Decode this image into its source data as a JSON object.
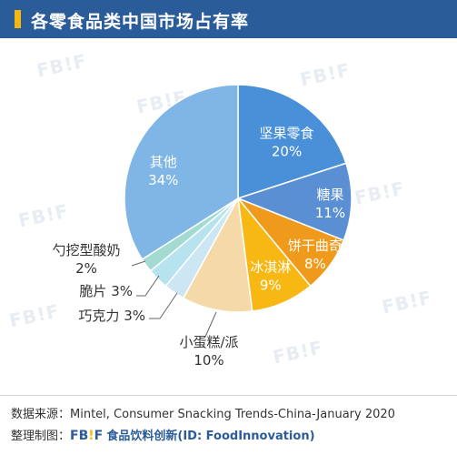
{
  "header": {
    "title": "各零食品类中国市场占有率"
  },
  "watermark": "FB!F",
  "chart_data": {
    "type": "pie",
    "title": "各零食品类中国市场占有率",
    "slices": [
      {
        "name": "坚果零食",
        "value_label": "20%",
        "value": 20,
        "color": "#4a90d9",
        "label_color": "#ffffff"
      },
      {
        "name": "糖果",
        "value_label": "11%",
        "value": 11,
        "color": "#5b8fd3",
        "label_color": "#ffffff"
      },
      {
        "name": "饼干曲奇",
        "value_label": "8%",
        "value": 8,
        "color": "#f09a1c",
        "label_color": "#ffffff"
      },
      {
        "name": "冰淇淋",
        "value_label": "9%",
        "value": 9,
        "color": "#f7b813",
        "label_color": "#ffffff"
      },
      {
        "name": "小蛋糕/派",
        "value_label": "10%",
        "value": 10,
        "color": "#f6d9a8",
        "label_color": "#333333"
      },
      {
        "name": "巧克力",
        "value_label": "3%",
        "value": 3,
        "color": "#cce6f3",
        "label_color": "#333333"
      },
      {
        "name": "脆片",
        "value_label": "3%",
        "value": 3,
        "color": "#b6e3ee",
        "label_color": "#333333"
      },
      {
        "name": "勺挖型酸奶",
        "value_label": "2%",
        "value": 2,
        "color": "#a3dbd2",
        "label_color": "#333333"
      },
      {
        "name": "其他",
        "value_label": "34%",
        "value": 34,
        "color": "#7fb6e6",
        "label_color": "#ffffff"
      }
    ]
  },
  "footer": {
    "source_label": "数据来源：",
    "source_text": "Mintel, Consumer Snacking Trends-China-January 2020",
    "credit_label": "整理制图：",
    "credit_logo_left": "FB",
    "credit_logo_mark": "!",
    "credit_logo_right": "F",
    "credit_name": "食品饮料创新",
    "credit_id": "(ID: FoodInnovation)"
  }
}
